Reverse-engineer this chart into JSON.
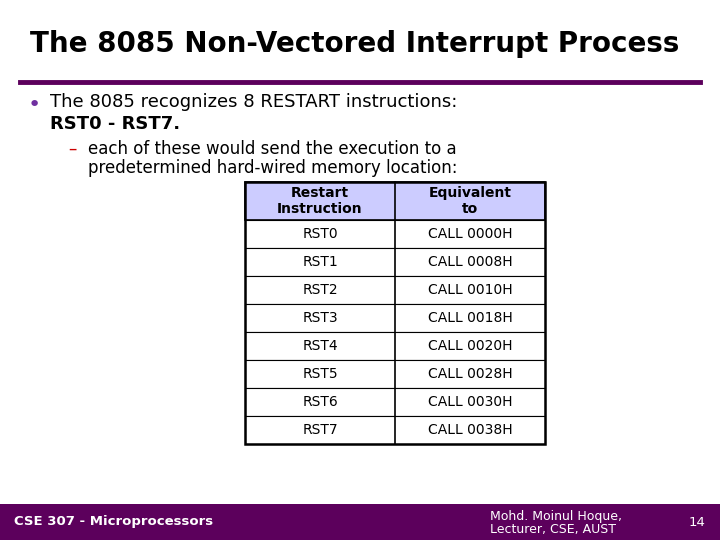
{
  "title": "The 8085 Non-Vectored Interrupt Process",
  "title_fontsize": 20,
  "title_color": "#000000",
  "separator_color": "#5c005c",
  "bullet_text_line1": "The 8085 recognizes 8 RESTART instructions:",
  "bullet_text_line2": "RST0 - RST7.",
  "bullet_fontsize": 13,
  "sub_bullet_line1": "each of these would send the execution to a",
  "sub_bullet_line2": "predetermined hard-wired memory location:",
  "sub_bullet_fontsize": 12,
  "table_header": [
    "Restart\nInstruction",
    "Equivalent\nto"
  ],
  "table_rows": [
    [
      "RST0",
      "CALL 0000H"
    ],
    [
      "RST1",
      "CALL 0008H"
    ],
    [
      "RST2",
      "CALL 0010H"
    ],
    [
      "RST3",
      "CALL 0018H"
    ],
    [
      "RST4",
      "CALL 0020H"
    ],
    [
      "RST5",
      "CALL 0028H"
    ],
    [
      "RST6",
      "CALL 0030H"
    ],
    [
      "RST7",
      "CALL 0038H"
    ]
  ],
  "header_bg": "#ccccff",
  "table_bg": "#ffffff",
  "table_border": "#000000",
  "table_fontsize": 10,
  "footer_left": "CSE 307 - Microprocessors",
  "footer_right_line1": "Mohd. Moinul Hoque,",
  "footer_right_line2": "Lecturer, CSE, AUST",
  "footer_page": "14",
  "footer_fontsize": 9.5,
  "footer_color": "#ffffff",
  "footer_bg": "#5c005c",
  "bg_color": "#ffffff",
  "bullet_color": "#7030a0",
  "dash_color": "#cc0000",
  "text_color": "#000000"
}
